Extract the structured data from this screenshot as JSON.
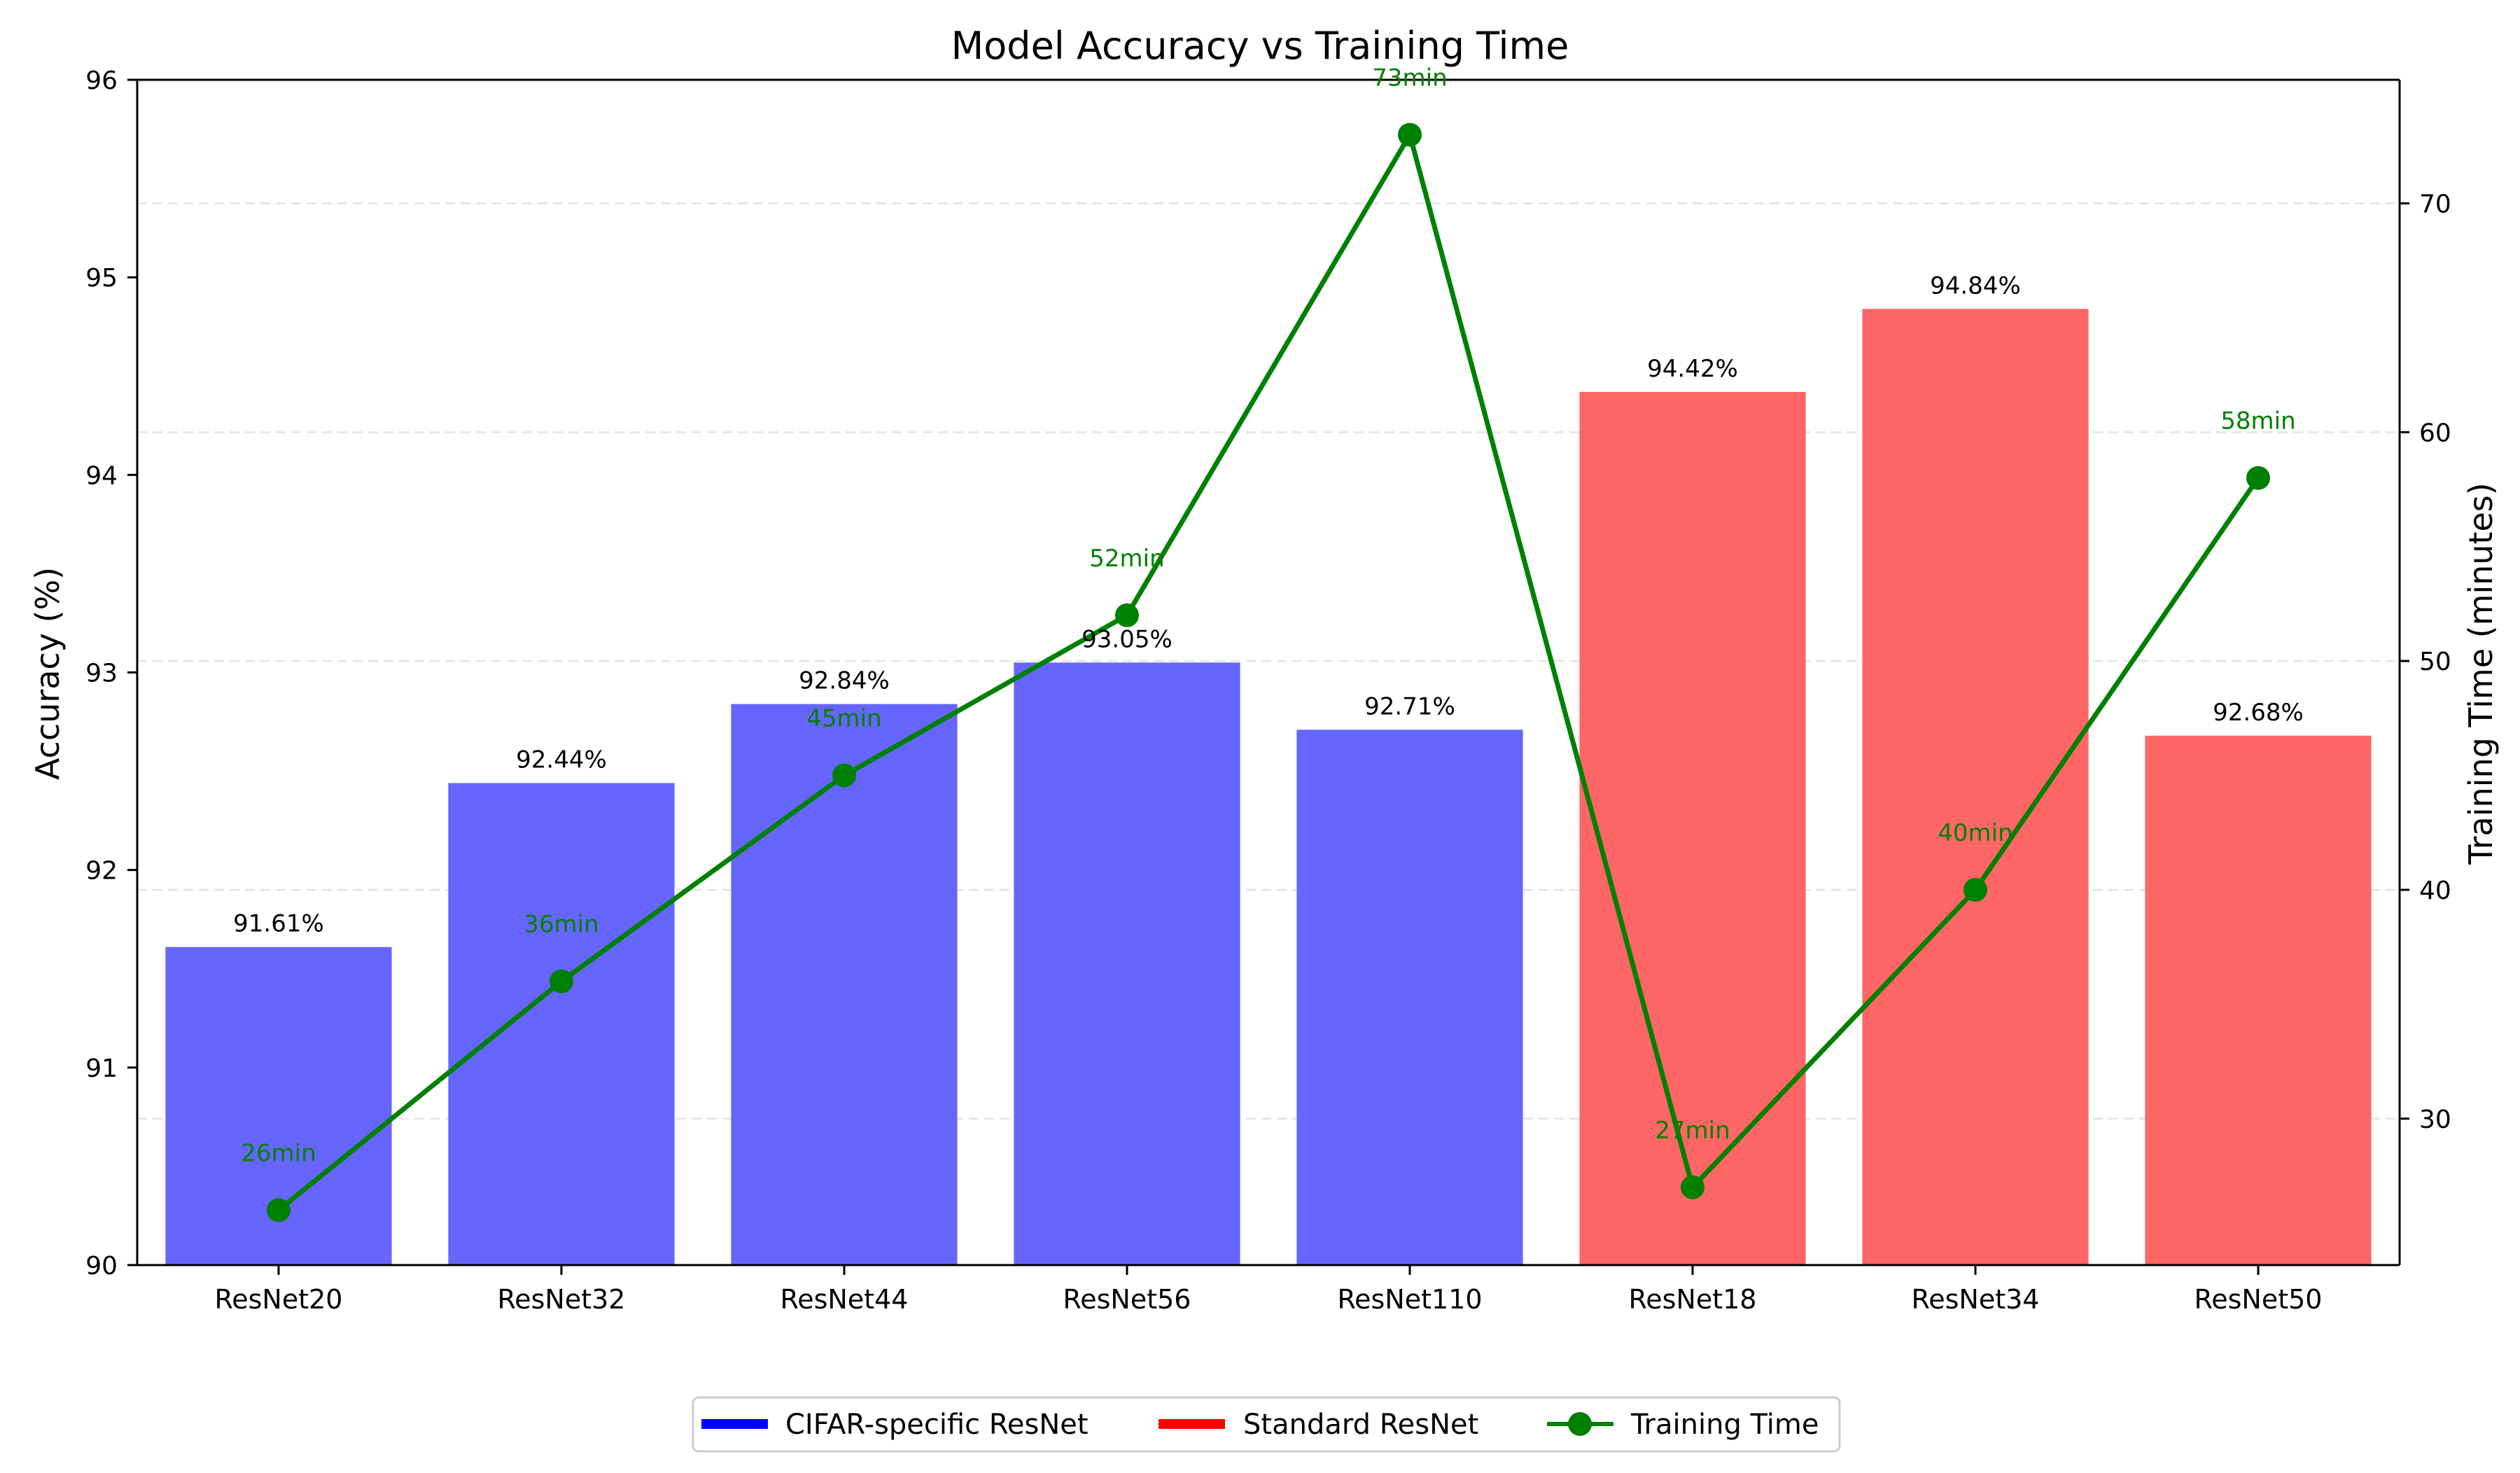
{
  "chart_data": {
    "type": "bar",
    "title": "Model Accuracy vs Training Time",
    "categories": [
      "ResNet20",
      "ResNet32",
      "ResNet44",
      "ResNet56",
      "ResNet110",
      "ResNet18",
      "ResNet34",
      "ResNet50"
    ],
    "ylabel": "Accuracy (%)",
    "y2label": "Training Time (minutes)",
    "ylim": [
      90,
      96
    ],
    "y2lim": [
      23.6,
      75.4
    ],
    "yticks": [
      90,
      91,
      92,
      93,
      94,
      95,
      96
    ],
    "y2ticks": [
      30,
      40,
      50,
      60,
      70
    ],
    "grid": "horizontal dashed",
    "legend_position": "bottom-center",
    "colors": {
      "cifar": "#6666ff",
      "standard": "#ff6666",
      "legend_cifar": "#0000ff",
      "legend_standard": "#ff0000",
      "line": "#008000"
    },
    "series": [
      {
        "name": "CIFAR-specific ResNet",
        "kind": "bar",
        "axis": "left",
        "values": [
          91.61,
          92.44,
          92.84,
          93.05,
          92.71,
          null,
          null,
          null
        ],
        "labels": [
          "91.61%",
          "92.44%",
          "92.84%",
          "93.05%",
          "92.71%",
          "",
          "",
          ""
        ]
      },
      {
        "name": "Standard ResNet",
        "kind": "bar",
        "axis": "left",
        "values": [
          null,
          null,
          null,
          null,
          null,
          94.42,
          94.84,
          92.68
        ],
        "labels": [
          "",
          "",
          "",
          "",
          "",
          "94.42%",
          "94.84%",
          "92.68%"
        ]
      },
      {
        "name": "Training Time",
        "kind": "line",
        "axis": "right",
        "values": [
          26,
          36,
          45,
          52,
          73,
          27,
          40,
          58
        ],
        "labels": [
          "26min",
          "36min",
          "45min",
          "52min",
          "73min",
          "27min",
          "40min",
          "58min"
        ]
      }
    ]
  }
}
